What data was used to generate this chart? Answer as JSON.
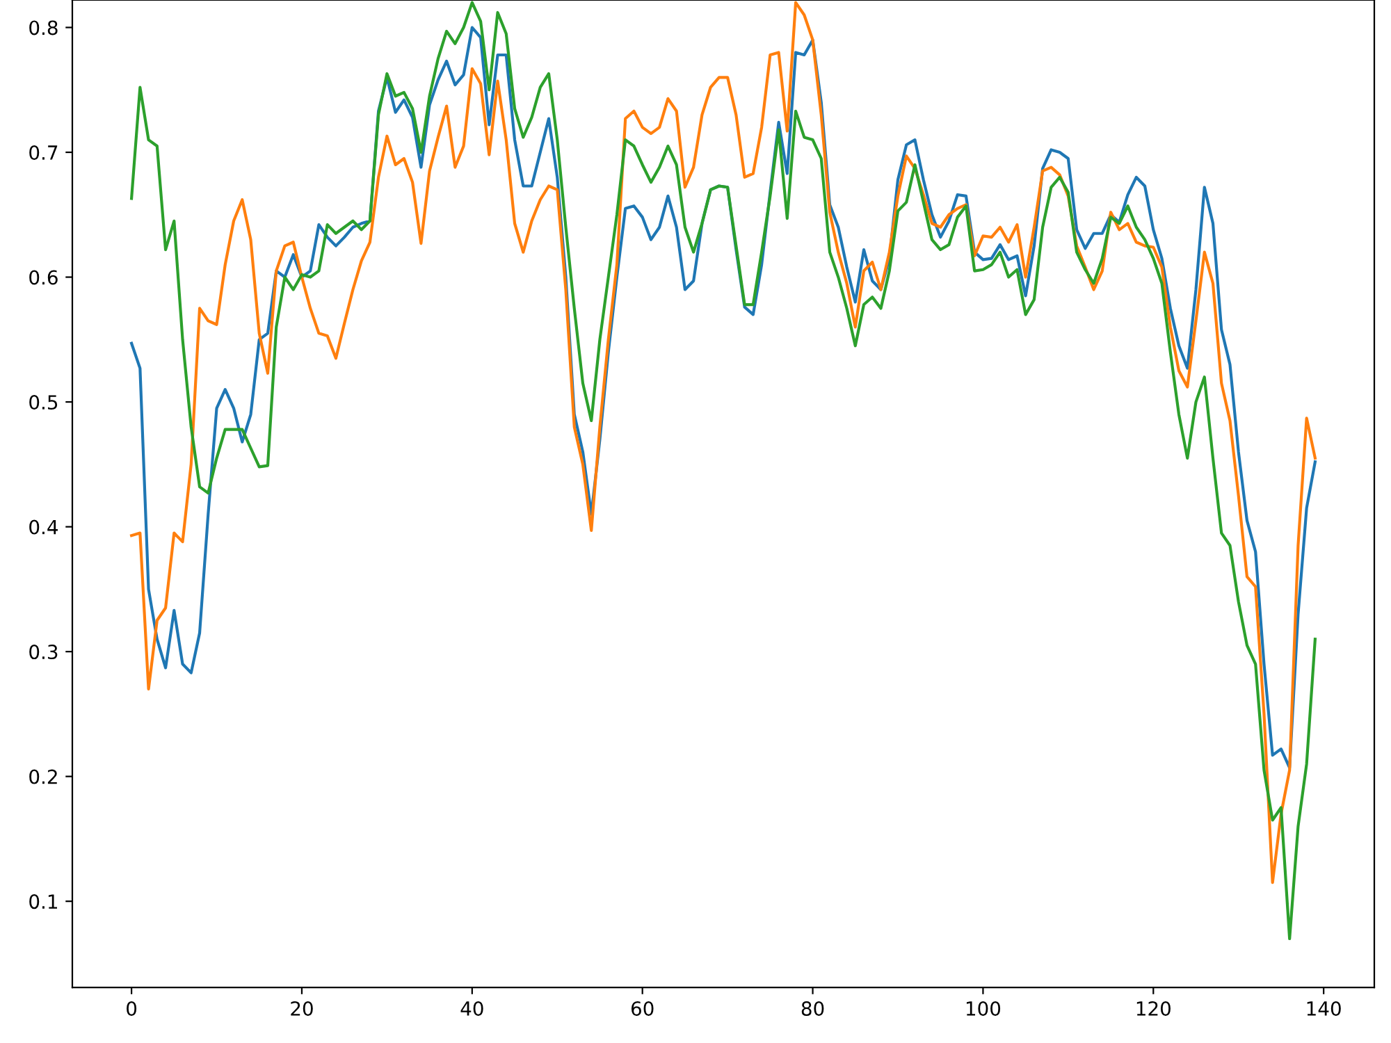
{
  "chart_data": {
    "type": "line",
    "x": [
      0,
      1,
      2,
      3,
      4,
      5,
      6,
      7,
      8,
      9,
      10,
      11,
      12,
      13,
      14,
      15,
      16,
      17,
      18,
      19,
      20,
      21,
      22,
      23,
      24,
      25,
      26,
      27,
      28,
      29,
      30,
      31,
      32,
      33,
      34,
      35,
      36,
      37,
      38,
      39,
      40,
      41,
      42,
      43,
      44,
      45,
      46,
      47,
      48,
      49,
      50,
      51,
      52,
      53,
      54,
      55,
      56,
      57,
      58,
      59,
      60,
      61,
      62,
      63,
      64,
      65,
      66,
      67,
      68,
      69,
      70,
      71,
      72,
      73,
      74,
      75,
      76,
      77,
      78,
      79,
      80,
      81,
      82,
      83,
      84,
      85,
      86,
      87,
      88,
      89,
      90,
      91,
      92,
      93,
      94,
      95,
      96,
      97,
      98,
      99,
      100,
      101,
      102,
      103,
      104,
      105,
      106,
      107,
      108,
      109,
      110,
      111,
      112,
      113,
      114,
      115,
      116,
      117,
      118,
      119,
      120,
      121,
      122,
      123,
      124,
      125,
      126,
      127,
      128,
      129,
      130,
      131,
      132,
      133,
      134,
      135,
      136,
      137,
      138,
      139
    ],
    "series": [
      {
        "color": "#1f77b4",
        "values": [
          0.547,
          0.527,
          0.35,
          0.31,
          0.287,
          0.333,
          0.29,
          0.283,
          0.315,
          0.41,
          0.495,
          0.51,
          0.495,
          0.468,
          0.49,
          0.55,
          0.555,
          0.605,
          0.6,
          0.618,
          0.6,
          0.605,
          0.642,
          0.632,
          0.625,
          0.632,
          0.64,
          0.643,
          0.645,
          0.733,
          0.76,
          0.732,
          0.742,
          0.728,
          0.688,
          0.738,
          0.758,
          0.773,
          0.754,
          0.762,
          0.8,
          0.792,
          0.722,
          0.778,
          0.778,
          0.71,
          0.673,
          0.673,
          0.7,
          0.727,
          0.68,
          0.6,
          0.49,
          0.46,
          0.41,
          0.47,
          0.54,
          0.6,
          0.655,
          0.657,
          0.648,
          0.63,
          0.64,
          0.665,
          0.64,
          0.59,
          0.597,
          0.643,
          0.67,
          0.673,
          0.672,
          0.622,
          0.576,
          0.57,
          0.61,
          0.668,
          0.724,
          0.683,
          0.78,
          0.778,
          0.79,
          0.74,
          0.658,
          0.64,
          0.608,
          0.58,
          0.622,
          0.597,
          0.59,
          0.615,
          0.678,
          0.706,
          0.71,
          0.678,
          0.65,
          0.632,
          0.645,
          0.666,
          0.665,
          0.62,
          0.614,
          0.615,
          0.626,
          0.614,
          0.617,
          0.585,
          0.625,
          0.687,
          0.702,
          0.7,
          0.695,
          0.638,
          0.623,
          0.635,
          0.635,
          0.65,
          0.644,
          0.666,
          0.68,
          0.673,
          0.638,
          0.615,
          0.575,
          0.545,
          0.527,
          0.59,
          0.672,
          0.643,
          0.558,
          0.53,
          0.46,
          0.405,
          0.38,
          0.29,
          0.217,
          0.222,
          0.207,
          0.33,
          0.415,
          0.452
        ]
      },
      {
        "color": "#ff7f0e",
        "values": [
          0.393,
          0.395,
          0.27,
          0.325,
          0.335,
          0.395,
          0.388,
          0.45,
          0.575,
          0.565,
          0.562,
          0.61,
          0.645,
          0.662,
          0.63,
          0.555,
          0.523,
          0.605,
          0.625,
          0.628,
          0.6,
          0.575,
          0.555,
          0.553,
          0.535,
          0.563,
          0.59,
          0.613,
          0.628,
          0.68,
          0.713,
          0.69,
          0.695,
          0.676,
          0.627,
          0.685,
          0.712,
          0.737,
          0.688,
          0.705,
          0.767,
          0.755,
          0.698,
          0.757,
          0.71,
          0.643,
          0.62,
          0.645,
          0.662,
          0.673,
          0.67,
          0.59,
          0.48,
          0.45,
          0.397,
          0.48,
          0.55,
          0.61,
          0.727,
          0.733,
          0.72,
          0.715,
          0.72,
          0.743,
          0.733,
          0.672,
          0.688,
          0.73,
          0.752,
          0.76,
          0.76,
          0.73,
          0.68,
          0.683,
          0.72,
          0.778,
          0.78,
          0.717,
          0.82,
          0.81,
          0.79,
          0.73,
          0.652,
          0.62,
          0.595,
          0.56,
          0.605,
          0.612,
          0.59,
          0.62,
          0.665,
          0.697,
          0.687,
          0.666,
          0.643,
          0.64,
          0.65,
          0.655,
          0.658,
          0.617,
          0.633,
          0.632,
          0.64,
          0.628,
          0.642,
          0.6,
          0.64,
          0.685,
          0.688,
          0.682,
          0.665,
          0.625,
          0.608,
          0.59,
          0.605,
          0.652,
          0.638,
          0.643,
          0.628,
          0.625,
          0.624,
          0.608,
          0.56,
          0.525,
          0.512,
          0.565,
          0.62,
          0.595,
          0.515,
          0.485,
          0.425,
          0.36,
          0.352,
          0.25,
          0.115,
          0.17,
          0.205,
          0.385,
          0.487,
          0.455
        ]
      },
      {
        "color": "#2ca02c",
        "values": [
          0.663,
          0.752,
          0.71,
          0.705,
          0.622,
          0.645,
          0.55,
          0.48,
          0.432,
          0.427,
          0.455,
          0.478,
          0.478,
          0.478,
          0.463,
          0.448,
          0.449,
          0.56,
          0.6,
          0.59,
          0.602,
          0.6,
          0.605,
          0.642,
          0.635,
          0.64,
          0.645,
          0.638,
          0.645,
          0.73,
          0.763,
          0.745,
          0.748,
          0.735,
          0.7,
          0.745,
          0.775,
          0.797,
          0.787,
          0.8,
          0.82,
          0.805,
          0.75,
          0.812,
          0.795,
          0.735,
          0.712,
          0.728,
          0.752,
          0.763,
          0.71,
          0.64,
          0.575,
          0.515,
          0.485,
          0.55,
          0.6,
          0.65,
          0.71,
          0.705,
          0.69,
          0.676,
          0.688,
          0.705,
          0.69,
          0.64,
          0.62,
          0.643,
          0.67,
          0.673,
          0.672,
          0.625,
          0.578,
          0.578,
          0.62,
          0.665,
          0.718,
          0.647,
          0.733,
          0.712,
          0.71,
          0.695,
          0.62,
          0.6,
          0.575,
          0.545,
          0.578,
          0.584,
          0.575,
          0.605,
          0.653,
          0.66,
          0.69,
          0.66,
          0.63,
          0.622,
          0.626,
          0.648,
          0.657,
          0.605,
          0.606,
          0.61,
          0.62,
          0.6,
          0.606,
          0.57,
          0.582,
          0.64,
          0.672,
          0.68,
          0.668,
          0.62,
          0.606,
          0.595,
          0.615,
          0.648,
          0.643,
          0.657,
          0.64,
          0.63,
          0.615,
          0.595,
          0.54,
          0.49,
          0.455,
          0.5,
          0.52,
          0.455,
          0.395,
          0.385,
          0.34,
          0.305,
          0.29,
          0.205,
          0.165,
          0.175,
          0.07,
          0.16,
          0.21,
          0.31
        ]
      }
    ],
    "xlim": [
      -6.95,
      145.95
    ],
    "ylim": [
      0.031,
      0.822
    ],
    "xticks": [
      0,
      20,
      40,
      60,
      80,
      100,
      120,
      140
    ],
    "yticks": [
      0.1,
      0.2,
      0.3,
      0.4,
      0.5,
      0.6,
      0.7,
      0.8
    ],
    "marker": "none",
    "line_style": "solid"
  }
}
